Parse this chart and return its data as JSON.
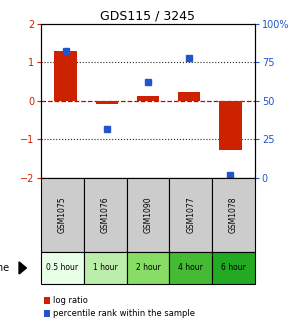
{
  "title": "GDS115 / 3245",
  "samples": [
    "GSM1075",
    "GSM1076",
    "GSM1090",
    "GSM1077",
    "GSM1078"
  ],
  "time_labels": [
    "0.5 hour",
    "1 hour",
    "2 hour",
    "4 hour",
    "6 hour"
  ],
  "log_ratios": [
    1.3,
    -0.07,
    0.12,
    0.22,
    -1.28
  ],
  "percentile_ranks": [
    82,
    32,
    62,
    78,
    2
  ],
  "bar_color": "#cc2200",
  "dot_color": "#2255cc",
  "ylim_left": [
    -2,
    2
  ],
  "ylim_right": [
    0,
    100
  ],
  "yticks_left": [
    -2,
    -1,
    0,
    1,
    2
  ],
  "yticks_right": [
    0,
    25,
    50,
    75,
    100
  ],
  "hline_color": "#cc0000",
  "grid_color": "#222222",
  "sample_bg": "#cccccc",
  "time_bg_colors": [
    "#e8ffe8",
    "#bbeeaa",
    "#88dd66",
    "#44bb33",
    "#22aa22"
  ],
  "legend_log": "log ratio",
  "legend_pct": "percentile rank within the sample"
}
